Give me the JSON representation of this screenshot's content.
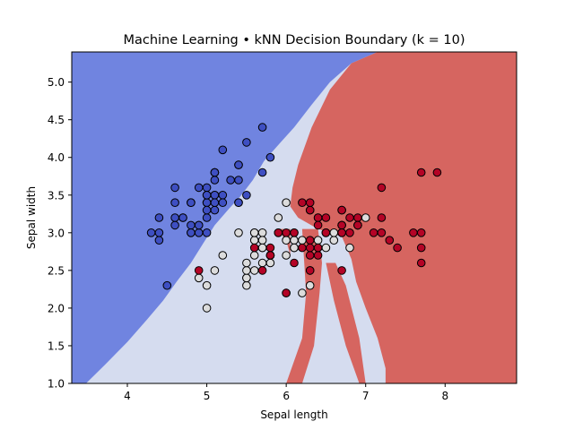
{
  "chart_data": {
    "type": "scatter",
    "title": "Machine Learning • kNN Decision Boundary (k = 10)",
    "xlabel": "Sepal length",
    "ylabel": "Sepal width",
    "xlim": [
      3.3,
      8.9
    ],
    "ylim": [
      1.0,
      5.4
    ],
    "xticks": [
      4,
      5,
      6,
      7,
      8
    ],
    "yticks": [
      1.0,
      1.5,
      2.0,
      2.5,
      3.0,
      3.5,
      4.0,
      4.5,
      5.0
    ],
    "grid": false,
    "legend": "none",
    "colors": {
      "region_class0": "#7084e0",
      "region_class1": "#d5dcef",
      "region_class2": "#d66560",
      "point_class0": "#3e4fc2",
      "point_class1": "#dcdcdc",
      "point_class2": "#b40426",
      "edge": "#000000"
    },
    "regions": [
      {
        "class": 0,
        "polygon": [
          [
            3.3,
            5.4
          ],
          [
            7.15,
            5.4
          ],
          [
            6.82,
            5.25
          ],
          [
            6.55,
            5.0
          ],
          [
            6.32,
            4.7
          ],
          [
            6.1,
            4.4
          ],
          [
            5.93,
            4.2
          ],
          [
            5.72,
            3.95
          ],
          [
            5.58,
            3.7
          ],
          [
            5.42,
            3.48
          ],
          [
            5.28,
            3.32
          ],
          [
            5.1,
            3.1
          ],
          [
            4.95,
            2.85
          ],
          [
            4.8,
            2.6
          ],
          [
            4.62,
            2.35
          ],
          [
            4.45,
            2.1
          ],
          [
            4.25,
            1.85
          ],
          [
            4.0,
            1.55
          ],
          [
            3.72,
            1.25
          ],
          [
            3.48,
            1.0
          ],
          [
            3.3,
            1.0
          ]
        ]
      },
      {
        "class": 2,
        "polygon": [
          [
            7.15,
            5.4
          ],
          [
            8.9,
            5.4
          ],
          [
            8.9,
            1.0
          ],
          [
            7.25,
            1.0
          ],
          [
            7.25,
            1.2
          ],
          [
            7.15,
            1.6
          ],
          [
            7.0,
            2.0
          ],
          [
            6.88,
            2.35
          ],
          [
            6.82,
            2.65
          ],
          [
            6.7,
            2.95
          ],
          [
            6.4,
            3.05
          ],
          [
            6.15,
            3.2
          ],
          [
            6.05,
            3.35
          ],
          [
            6.08,
            3.6
          ],
          [
            6.15,
            3.9
          ],
          [
            6.32,
            4.4
          ],
          [
            6.55,
            4.9
          ],
          [
            6.82,
            5.25
          ]
        ]
      },
      {
        "class": 2,
        "polygon": [
          [
            5.88,
            3.05
          ],
          [
            6.05,
            3.05
          ],
          [
            6.05,
            2.7
          ],
          [
            6.0,
            2.9
          ]
        ]
      },
      {
        "class": 2,
        "polygon": [
          [
            6.2,
            3.05
          ],
          [
            6.4,
            3.05
          ],
          [
            6.45,
            2.6
          ],
          [
            6.42,
            2.2
          ],
          [
            6.35,
            1.5
          ],
          [
            6.2,
            1.0
          ],
          [
            6.0,
            1.0
          ],
          [
            6.2,
            1.6
          ],
          [
            6.25,
            2.2
          ]
        ]
      },
      {
        "class": 2,
        "polygon": [
          [
            6.5,
            2.6
          ],
          [
            6.62,
            2.6
          ],
          [
            6.75,
            2.3
          ],
          [
            6.92,
            1.6
          ],
          [
            7.0,
            1.0
          ],
          [
            6.92,
            1.0
          ],
          [
            6.75,
            1.5
          ],
          [
            6.6,
            2.1
          ]
        ]
      }
    ],
    "series": [
      {
        "class": 0,
        "x": [
          5.1,
          4.9,
          4.7,
          4.6,
          5.0,
          5.4,
          4.6,
          5.0,
          4.4,
          4.9,
          5.4,
          4.8,
          4.8,
          4.3,
          5.8,
          5.7,
          5.4,
          5.1,
          5.7,
          5.1,
          5.4,
          5.1,
          4.6,
          5.1,
          4.8,
          5.0,
          5.0,
          5.2,
          5.2,
          4.7,
          4.8,
          5.4,
          5.2,
          5.5,
          4.9,
          5.0,
          5.5,
          4.9,
          4.4,
          5.1,
          5.0,
          4.5,
          4.4,
          5.0,
          5.1,
          4.8,
          5.1,
          4.6,
          5.3,
          5.0
        ],
        "y": [
          3.5,
          3.0,
          3.2,
          3.1,
          3.6,
          3.9,
          3.4,
          3.4,
          2.9,
          3.1,
          3.7,
          3.4,
          3.0,
          3.0,
          4.0,
          4.4,
          3.9,
          3.5,
          3.8,
          3.8,
          3.4,
          3.7,
          3.6,
          3.3,
          3.4,
          3.0,
          3.4,
          3.5,
          3.4,
          3.2,
          3.1,
          3.4,
          4.1,
          4.2,
          3.1,
          3.2,
          3.5,
          3.6,
          3.0,
          3.4,
          3.5,
          2.3,
          3.2,
          3.5,
          3.8,
          3.0,
          3.8,
          3.2,
          3.7,
          3.3
        ]
      },
      {
        "class": 1,
        "x": [
          7.0,
          6.4,
          6.9,
          5.5,
          6.5,
          5.7,
          6.3,
          4.9,
          6.6,
          5.2,
          5.0,
          5.9,
          6.0,
          6.1,
          5.6,
          6.7,
          5.6,
          5.8,
          6.2,
          5.6,
          5.9,
          6.1,
          6.3,
          6.1,
          6.4,
          6.6,
          6.8,
          6.7,
          6.0,
          5.7,
          5.5,
          5.5,
          5.8,
          6.0,
          5.4,
          6.0,
          6.7,
          6.3,
          5.6,
          5.5,
          5.5,
          6.1,
          5.8,
          5.0,
          5.6,
          5.7,
          5.7,
          6.2,
          5.1,
          5.7
        ],
        "y": [
          3.2,
          3.2,
          3.1,
          2.3,
          2.8,
          2.8,
          3.3,
          2.4,
          2.9,
          2.7,
          2.0,
          3.0,
          2.2,
          2.9,
          2.9,
          3.1,
          3.0,
          2.7,
          2.2,
          2.5,
          3.2,
          2.8,
          2.5,
          2.8,
          2.9,
          3.0,
          2.8,
          3.0,
          2.9,
          2.6,
          2.4,
          2.4,
          2.7,
          2.7,
          3.0,
          3.4,
          3.1,
          2.3,
          3.0,
          2.5,
          2.6,
          3.0,
          2.6,
          2.3,
          2.7,
          3.0,
          2.9,
          2.9,
          2.5,
          2.8
        ]
      },
      {
        "class": 2,
        "x": [
          6.3,
          5.8,
          7.1,
          6.3,
          6.5,
          7.6,
          4.9,
          7.3,
          6.7,
          7.2,
          6.5,
          6.4,
          6.8,
          5.7,
          5.8,
          6.4,
          6.5,
          7.7,
          7.7,
          6.0,
          6.9,
          5.6,
          7.7,
          6.3,
          6.7,
          7.2,
          6.2,
          6.1,
          6.4,
          7.2,
          7.4,
          7.9,
          6.4,
          6.3,
          6.1,
          7.7,
          6.3,
          6.4,
          6.0,
          6.9,
          6.7,
          6.9,
          5.8,
          6.8,
          6.7,
          6.7,
          6.3,
          6.5,
          6.2,
          5.9
        ],
        "y": [
          3.3,
          2.7,
          3.0,
          2.9,
          3.0,
          3.0,
          2.5,
          2.9,
          2.5,
          3.6,
          3.2,
          2.7,
          3.0,
          2.5,
          2.8,
          3.2,
          3.0,
          3.8,
          2.6,
          2.2,
          3.2,
          2.8,
          2.8,
          2.7,
          3.3,
          3.2,
          2.8,
          3.0,
          2.8,
          3.0,
          2.8,
          3.8,
          2.8,
          2.8,
          2.6,
          3.0,
          3.4,
          3.1,
          3.0,
          3.1,
          3.1,
          3.1,
          2.7,
          3.2,
          3.3,
          3.0,
          2.5,
          3.0,
          3.4,
          3.0
        ]
      }
    ]
  }
}
